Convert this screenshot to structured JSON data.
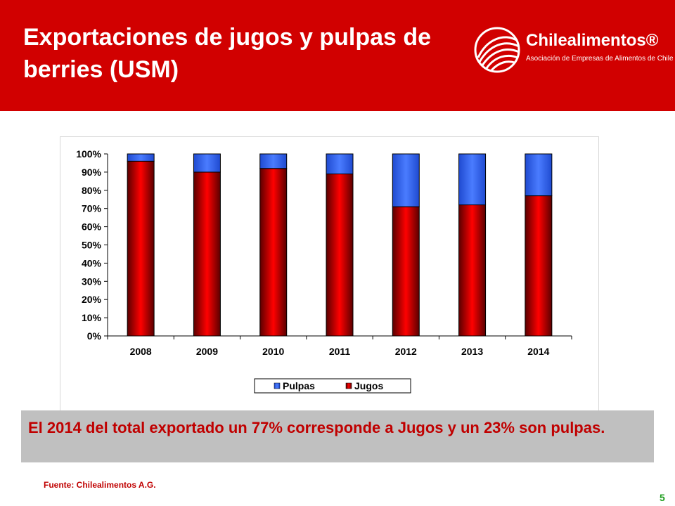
{
  "header": {
    "title": "Exportaciones de jugos y pulpas de berries (USM)",
    "background_color": "#d10000"
  },
  "logo": {
    "name": "Chilealimentos®",
    "subtitle": "Asociación de Empresas de Alimentos de Chile",
    "icon": "globe-icon"
  },
  "chart_data": {
    "type": "bar",
    "stacked": "percent",
    "categories": [
      "2008",
      "2009",
      "2010",
      "2011",
      "2012",
      "2013",
      "2014"
    ],
    "series": [
      {
        "name": "Jugos",
        "values": [
          96,
          90,
          92,
          89,
          71,
          72,
          77
        ],
        "color": "#e00000"
      },
      {
        "name": "Pulpas",
        "values": [
          4,
          10,
          8,
          11,
          29,
          28,
          23
        ],
        "color": "#2f62e8"
      }
    ],
    "ylim": [
      0,
      100
    ],
    "yticks": [
      "0%",
      "10%",
      "20%",
      "30%",
      "40%",
      "50%",
      "60%",
      "70%",
      "80%",
      "90%",
      "100%"
    ],
    "grid": false,
    "legend_placement": "bottom",
    "legend": [
      "Pulpas",
      "Jugos"
    ]
  },
  "caption": {
    "text": "El  2014 del total exportado un 77% corresponde a Jugos y un 23% son pulpas."
  },
  "source": "Fuente: Chilealimentos A.G.",
  "page_number": "5"
}
